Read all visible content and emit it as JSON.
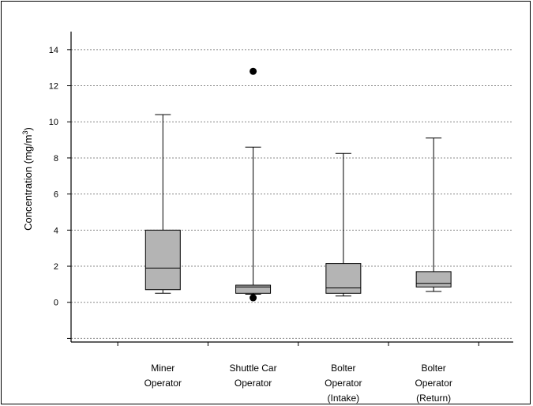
{
  "chart_data": {
    "type": "box",
    "ylabel": "Concentration (mg/m",
    "ylabel_superscript": "3",
    "ylabel_suffix": ")",
    "ylim": [
      -2.2,
      15
    ],
    "yticks": [
      0,
      2,
      4,
      6,
      8,
      10,
      12,
      14
    ],
    "grid": true,
    "categories": [
      [
        "Miner",
        "Operator"
      ],
      [
        "Shuttle Car",
        "Operator"
      ],
      [
        "Bolter",
        "Operator",
        "(Intake)"
      ],
      [
        "Bolter",
        "Operator",
        "(Return)"
      ]
    ],
    "boxes": [
      {
        "min": 0.5,
        "q1": 0.7,
        "median": 1.9,
        "q3": 4.0,
        "max": 10.4,
        "outliers": []
      },
      {
        "min": 0.45,
        "q1": 0.5,
        "median": 0.85,
        "q3": 0.95,
        "max": 8.6,
        "outliers": [
          12.8,
          0.25
        ]
      },
      {
        "min": 0.35,
        "q1": 0.5,
        "median": 0.8,
        "q3": 2.15,
        "max": 8.25,
        "outliers": []
      },
      {
        "min": 0.6,
        "q1": 0.85,
        "median": 1.05,
        "q3": 1.7,
        "max": 9.1,
        "outliers": []
      }
    ],
    "box_color": "#b4b4b4",
    "grid_color": "#888888"
  }
}
